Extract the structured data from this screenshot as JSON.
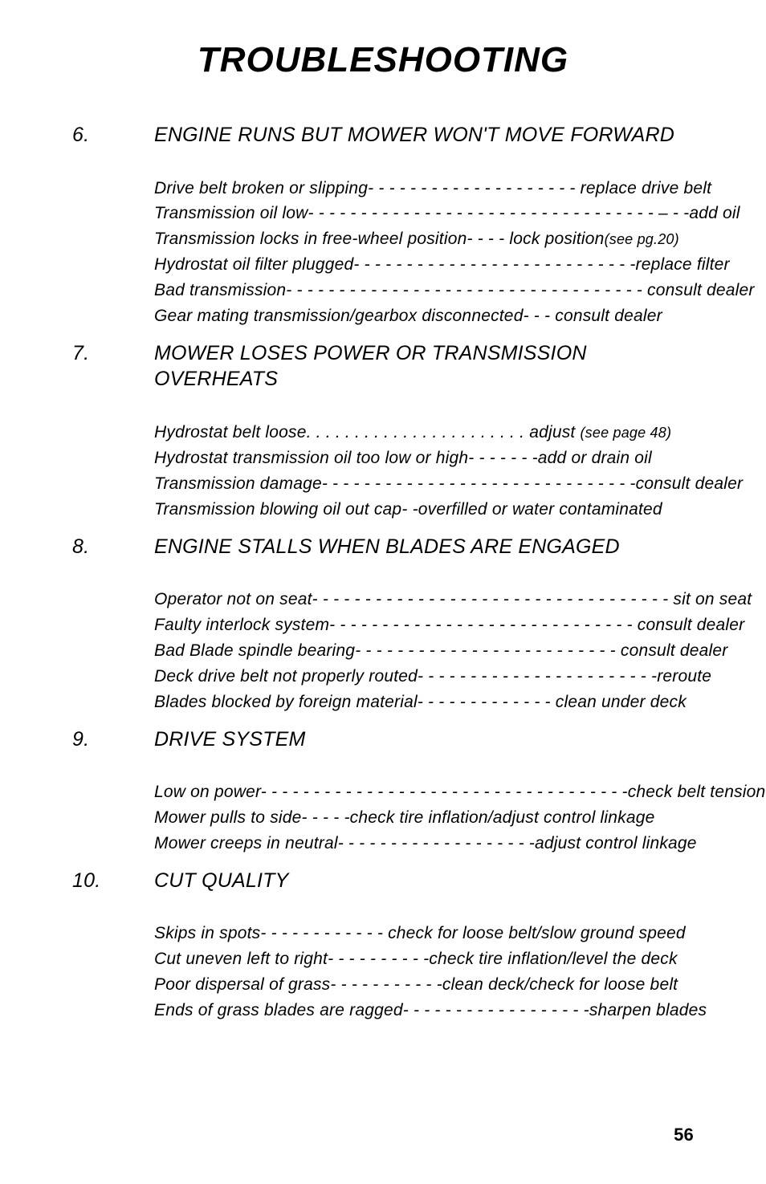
{
  "title": "TROUBLESHOOTING",
  "pageNumber": "56",
  "sections": [
    {
      "num": "6.",
      "heading": "ENGINE RUNS BUT MOWER WON'T MOVE FORWARD",
      "items": [
        {
          "left": "Drive belt broken or slipping",
          "fill": "- - - - - - - - - - - - - - - - - - - -",
          "right": " replace drive belt"
        },
        {
          "left": "Transmission oil low",
          "fill": "- - - - - - - - - - - - - - - - - - - - - - - - - - - - - - - - - – - -",
          "right": "add oil"
        },
        {
          "left": "Transmission locks in free-wheel position",
          "fill": "- - - -",
          "right": " lock position(see pg.20)",
          "rightSmall": true
        },
        {
          "left": "Hydrostat oil filter plugged",
          "fill": "- - - - - - - - - - - - - - - - - - - - - - - - - - -",
          "right": "replace filter"
        },
        {
          "left": "Bad transmission",
          "fill": "- - - - - - - - - - - - - - - - - - - - - - - - - - - - - - - - - -",
          "right": " consult dealer"
        },
        {
          "left": "Gear mating transmission/gearbox disconnected",
          "fill": "- - -",
          "right": " consult dealer"
        }
      ]
    },
    {
      "num": "7.",
      "heading": "MOWER LOSES POWER OR TRANSMISSION OVERHEATS",
      "items": [
        {
          "left": "Hydrostat belt loose",
          "fill": ". . . . . . . . . . . . . . . . . . . . . . .",
          "right": " adjust (see page 48)",
          "rightSmall": true
        },
        {
          "left": "Hydrostat transmission oil too low or high",
          "fill": "- - - - - - -",
          "right": "add or drain oil"
        },
        {
          "left": "Transmission damage",
          "fill": "- - - - - - - - - - - - - - - - - - - - - - - - - - - - - -",
          "right": "consult dealer"
        },
        {
          "left": "Transmission blowing oil out cap-",
          "fill": " ",
          "right": "-overfilled or water contaminated"
        }
      ]
    },
    {
      "num": "8.",
      "heading": "ENGINE STALLS WHEN BLADES ARE ENGAGED",
      "items": [
        {
          "left": "Operator not on seat",
          "fill": "- - - - - - - - - - - - - - - - - - - - - - - - - - - - - - - - - -",
          "right": " sit on seat"
        },
        {
          "left": "Faulty interlock system",
          "fill": "- - - - - - - - - - - - - - - - - - - - - - - - - - - - -",
          "right": " consult dealer"
        },
        {
          "left": "Bad Blade spindle  bearing",
          "fill": "- - - - - - - - - - - - - - - - - - - - - - - - -",
          "right": " consult dealer"
        },
        {
          "left": "Deck drive belt not properly routed",
          "fill": "- - - - - - - - - - - - - - - - - - - - - - -",
          "right": "reroute"
        },
        {
          "left": "Blades blocked by foreign material",
          "fill": "- - - - - - - - - - - - -",
          "right": " clean under deck"
        }
      ]
    },
    {
      "num": "9.",
      "heading": "DRIVE SYSTEM",
      "items": [
        {
          "left": "Low on power",
          "fill": "- - - - - - - - - - - - - - - - - - - - - - - - - - - - - - - - - - -",
          "right": "check belt tension"
        },
        {
          "left": "Mower pulls to side",
          "fill": "- - - - -",
          "right": "check tire inflation/adjust control linkage"
        },
        {
          "left": "Mower creeps in neutral",
          "fill": "- - - - - - - - - - - - - - - - - - -",
          "right": "adjust control linkage"
        }
      ]
    },
    {
      "num": "10.",
      "heading": "CUT QUALITY",
      "items": [
        {
          "left": "Skips in spots",
          "fill": "- - - - - - - - - - - -",
          "right": " check for loose belt/slow ground speed"
        },
        {
          "left": "Cut uneven left to right",
          "fill": "- - - - - - - - - -",
          "right": "check tire inflation/level the deck"
        },
        {
          "left": "Poor dispersal of grass",
          "fill": "- - - - - - - - - - -",
          "right": "clean deck/check for loose belt"
        },
        {
          "left": "Ends of grass blades are ragged",
          "fill": "- - - - - - - - - - - - - - - - - -",
          "right": "sharpen blades"
        }
      ]
    }
  ]
}
